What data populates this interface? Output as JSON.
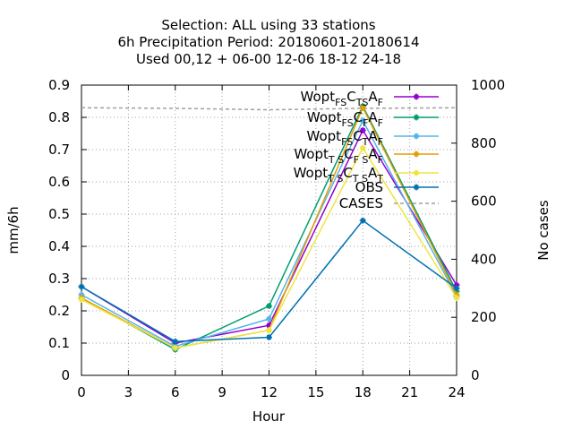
{
  "chart_data": {
    "type": "line",
    "title_lines": [
      "Selection: ALL using    33 stations",
      "6h Precipitation   Period: 20180601-20180614",
      "Used  00,12  + 06-00 12-06 18-12 24-18"
    ],
    "xlabel": "Hour",
    "ylabel": "mm/6h",
    "y2label": "No cases",
    "x": [
      0,
      6,
      12,
      18,
      24
    ],
    "xticks": [
      "0",
      "3",
      "6",
      "9",
      "12",
      "15",
      "18",
      "21",
      "24"
    ],
    "xlim": [
      0,
      24
    ],
    "ylim": [
      0,
      0.9
    ],
    "yticks": [
      "0",
      "0.1",
      "0.2",
      "0.3",
      "0.4",
      "0.5",
      "0.6",
      "0.7",
      "0.8",
      "0.9"
    ],
    "y2lim": [
      0,
      1000
    ],
    "y2ticks": [
      "0",
      "200",
      "400",
      "600",
      "800",
      "1000"
    ],
    "grid": true,
    "legend_position": "top-right",
    "series": [
      {
        "legend": {
          "base": "Wopt",
          "s1": "FS",
          "m1": "C",
          "s2": "TS",
          "m2": "A",
          "s3": "F"
        },
        "color": "#9400d3",
        "values": [
          0.275,
          0.1,
          0.155,
          0.76,
          0.28
        ]
      },
      {
        "legend": {
          "base": "Wopt",
          "s1": "FS",
          "m1": "C",
          "s2": "F",
          "m2": "A",
          "s3": "F"
        },
        "color": "#009e73",
        "values": [
          0.24,
          0.08,
          0.215,
          0.835,
          0.26
        ]
      },
      {
        "legend": {
          "base": "Wopt",
          "s1": "FS",
          "m1": "C",
          "s2": "T",
          "m2": "A",
          "s3": "F"
        },
        "color": "#56b4e9",
        "values": [
          0.25,
          0.09,
          0.175,
          0.79,
          0.245
        ]
      },
      {
        "legend": {
          "base": "Wopt",
          "s1": "T S",
          "m1": "C",
          "s2": "F S",
          "m2": "A",
          "s3": "F"
        },
        "color": "#e69f00",
        "values": [
          0.24,
          0.085,
          0.14,
          0.83,
          0.25
        ]
      },
      {
        "legend": {
          "base": "Wopt",
          "s1": "T S",
          "m1": "C",
          "s2": "T S",
          "m2": "A",
          "s3": "T"
        },
        "color": "#f0e442",
        "values": [
          0.235,
          0.085,
          0.14,
          0.705,
          0.24
        ]
      },
      {
        "name": "OBS",
        "color": "#0072b2",
        "values": [
          0.275,
          0.105,
          0.118,
          0.48,
          0.27
        ]
      }
    ],
    "cases": {
      "name": "CASES",
      "color": "#a0a0a0",
      "x": [
        0,
        6,
        12,
        18,
        24
      ],
      "values": [
        922,
        920,
        915,
        920,
        922
      ]
    }
  }
}
